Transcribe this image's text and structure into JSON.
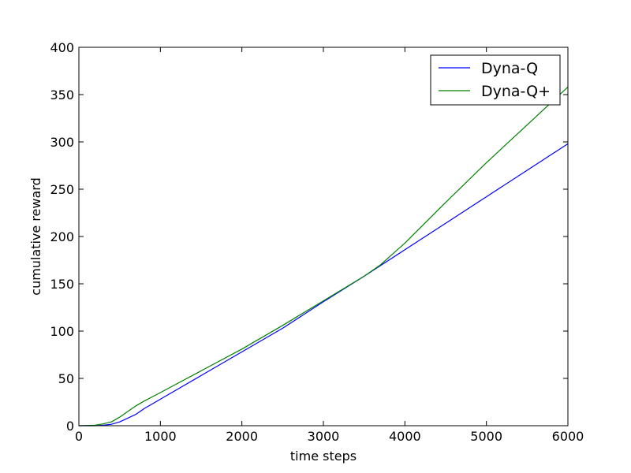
{
  "chart_data": {
    "type": "line",
    "xlabel": "time steps",
    "ylabel": "cumulative reward",
    "xlim": [
      0,
      6000
    ],
    "ylim": [
      0,
      400
    ],
    "xticks": [
      0,
      1000,
      2000,
      3000,
      4000,
      5000,
      6000
    ],
    "yticks": [
      0,
      50,
      100,
      150,
      200,
      250,
      300,
      350,
      400
    ],
    "grid": false,
    "legend_position": "top-right",
    "series": [
      {
        "name": "Dyna-Q",
        "color": "#0000ff",
        "x": [
          0,
          200,
          300,
          400,
          500,
          600,
          700,
          800,
          1000,
          1500,
          2000,
          2500,
          3000,
          3500,
          4000,
          4500,
          5000,
          5500,
          6000
        ],
        "y": [
          0,
          0,
          0.5,
          1.5,
          4,
          8,
          12,
          18,
          28,
          53,
          78,
          103,
          131,
          158,
          186,
          214,
          242,
          270,
          298
        ]
      },
      {
        "name": "Dyna-Q+",
        "color": "#008000",
        "x": [
          0,
          200,
          300,
          400,
          500,
          600,
          700,
          800,
          1000,
          1500,
          2000,
          2500,
          3000,
          3500,
          3700,
          4000,
          4500,
          5000,
          5500,
          6000
        ],
        "y": [
          0,
          0.5,
          2,
          4,
          9,
          15,
          21,
          26,
          35,
          58,
          81,
          106,
          132,
          158,
          170,
          193,
          236,
          278,
          318,
          358
        ]
      }
    ]
  }
}
